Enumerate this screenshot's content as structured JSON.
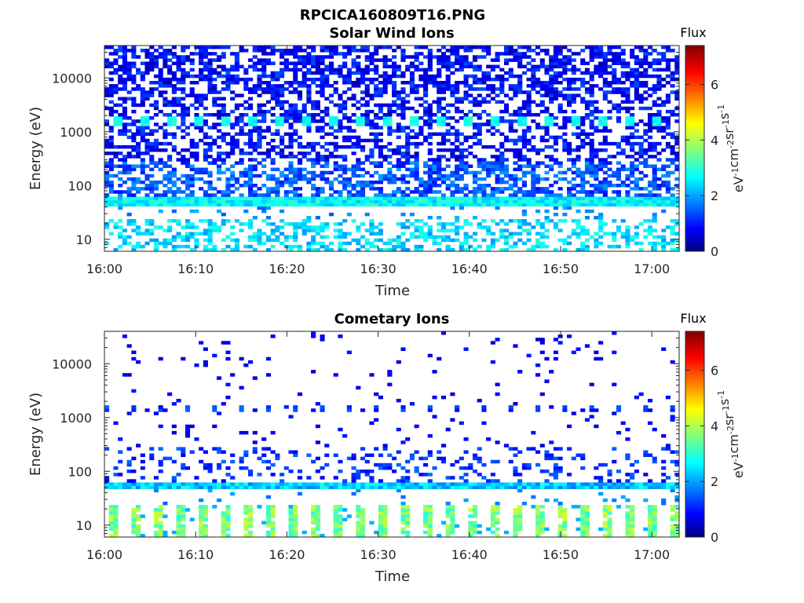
{
  "figure_title": "RPCICA160809T16.PNG",
  "chart_data": [
    {
      "type": "heatmap",
      "title": "Solar Wind Ions",
      "xlabel": "Time",
      "ylabel": "Energy (eV)",
      "x_ticks": [
        "16:00",
        "16:10",
        "16:20",
        "16:30",
        "16:40",
        "16:50",
        "17:00"
      ],
      "x_range": [
        "16:00",
        "17:03"
      ],
      "y_scale": "log",
      "y_ticks": [
        10,
        100,
        1000,
        10000
      ],
      "y_tick_labels": [
        "10",
        "100",
        "1000",
        "10000"
      ],
      "y_range": [
        6,
        40000
      ],
      "colorbar": {
        "title": "Flux",
        "label": "eV^-1 cm^-2 sr^-1 s^-1",
        "range": [
          0,
          7.4
        ],
        "ticks": [
          0,
          2,
          4,
          6
        ],
        "colormap": "jet"
      },
      "features": [
        {
          "energy": "5-25 eV",
          "flux": "2-3",
          "pattern": "sparse low-energy cells"
        },
        {
          "energy": "45-60 eV",
          "flux": "2.5-3",
          "pattern": "continuous band"
        },
        {
          "energy": "~1600 eV",
          "flux": "2.5-3",
          "pattern": "periodic blobs"
        },
        {
          "energy": "100-40000 eV",
          "flux": "0.5-1.5",
          "pattern": "dense speckle"
        }
      ]
    },
    {
      "type": "heatmap",
      "title": "Cometary Ions",
      "xlabel": "Time",
      "ylabel": "Energy (eV)",
      "x_ticks": [
        "16:00",
        "16:10",
        "16:20",
        "16:30",
        "16:40",
        "16:50",
        "17:00"
      ],
      "x_range": [
        "16:00",
        "17:03"
      ],
      "y_scale": "log",
      "y_ticks": [
        10,
        100,
        1000,
        10000
      ],
      "y_tick_labels": [
        "10",
        "100",
        "1000",
        "10000"
      ],
      "y_range": [
        6,
        40000
      ],
      "colorbar": {
        "title": "Flux",
        "label": "eV^-1 cm^-2 sr^-1 s^-1",
        "range": [
          0,
          7.4
        ],
        "ticks": [
          0,
          2,
          4,
          6
        ],
        "colormap": "jet"
      },
      "features": [
        {
          "energy": "6-25 eV",
          "flux": "3-4",
          "pattern": "periodic blocks"
        },
        {
          "energy": "50-65 eV",
          "flux": "2-3",
          "pattern": "continuous band"
        },
        {
          "energy": "~1500 eV",
          "flux": "0.5-1.5",
          "pattern": "sparse periodic dashes"
        },
        {
          "energy": "100-40000 eV",
          "flux": "0.5-1",
          "pattern": "sparse speckle"
        }
      ]
    }
  ]
}
